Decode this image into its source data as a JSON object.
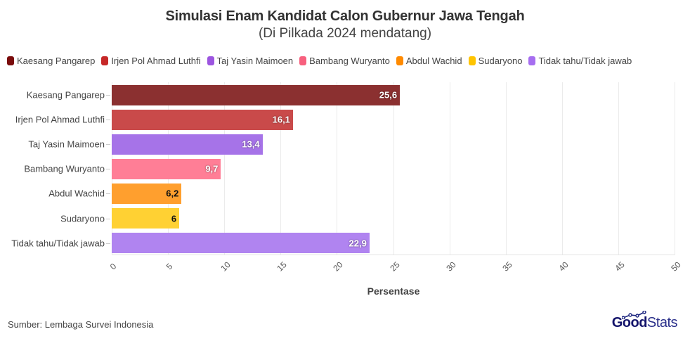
{
  "header": {
    "title": "Simulasi Enam Kandidat Calon Gubernur Jawa Tengah",
    "subtitle": "(Di Pilkada 2024 mendatang)"
  },
  "legend": [
    {
      "label": "Kaesang Pangarep",
      "color": "#7a0c0c"
    },
    {
      "label": "Irjen Pol Ahmad Luthfi",
      "color": "#c62828"
    },
    {
      "label": "Taj Yasin Maimoen",
      "color": "#9c55e0"
    },
    {
      "label": "Bambang Wuryanto",
      "color": "#f7607e"
    },
    {
      "label": "Abdul Wachid",
      "color": "#ff8a00"
    },
    {
      "label": "Sudaryono",
      "color": "#ffc400"
    },
    {
      "label": "Tidak tahu/Tidak jawab",
      "color": "#a66ef0"
    }
  ],
  "chart_data": {
    "type": "bar",
    "orientation": "horizontal",
    "title": "Simulasi Enam Kandidat Calon Gubernur Jawa Tengah",
    "subtitle": "(Di Pilkada 2024 mendatang)",
    "categories": [
      "Kaesang Pangarep",
      "Irjen Pol Ahmad Luthfi",
      "Taj Yasin Maimoen",
      "Bambang Wuryanto",
      "Abdul Wachid",
      "Sudaryono",
      "Tidak tahu/Tidak jawab"
    ],
    "values": [
      25.6,
      16.1,
      13.4,
      9.7,
      6.2,
      6,
      22.9
    ],
    "value_labels": [
      "25,6",
      "16,1",
      "13,4",
      "9,7",
      "6,2",
      "6",
      "22,9"
    ],
    "bar_colors": [
      "#8b3030",
      "#c94a4a",
      "#a673e8",
      "#ff7e96",
      "#ff9f2e",
      "#ffd133",
      "#b084f0"
    ],
    "label_text_colors": [
      "#ffffff",
      "#ffffff",
      "#ffffff",
      "#ffffff",
      "#111111",
      "#111111",
      "#ffffff"
    ],
    "xlabel": "Persentase",
    "ylabel": "",
    "xlim": [
      0,
      50
    ],
    "x_ticks": [
      0,
      5,
      10,
      15,
      20,
      25,
      30,
      35,
      40,
      45,
      50
    ],
    "grid": true,
    "legend_position": "top"
  },
  "footer": {
    "source": "Sumber: Lembaga Survei Indonesia",
    "brand_bold": "Good",
    "brand_light": "Stats"
  }
}
